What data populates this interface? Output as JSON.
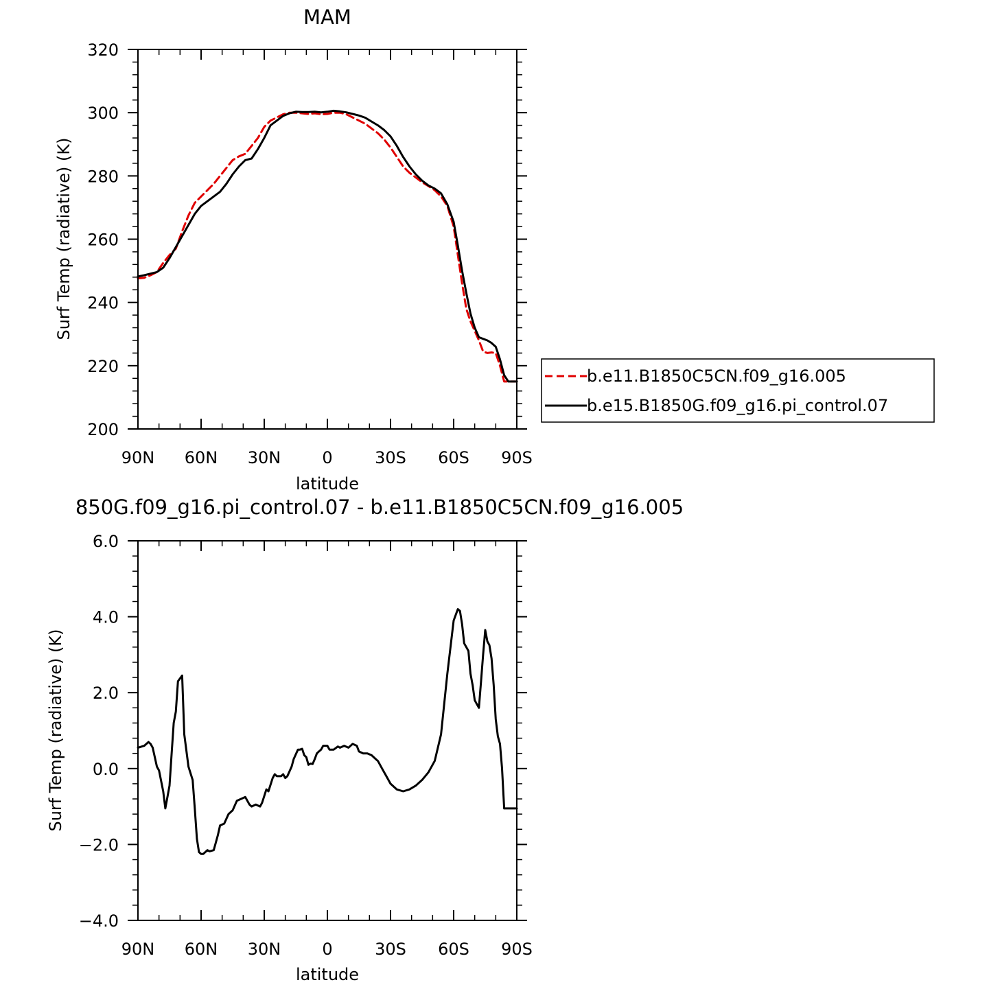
{
  "chart_data": [
    {
      "type": "line",
      "title": "MAM",
      "xlabel": "latitude",
      "ylabel": "Surf Temp (radiative) (K)",
      "xlim": [
        90,
        -90
      ],
      "ylim": [
        200,
        320
      ],
      "x_ticks": [
        90,
        60,
        30,
        0,
        -30,
        -60,
        -90
      ],
      "x_tick_labels": [
        "90N",
        "60N",
        "30N",
        "0",
        "30S",
        "60S",
        "90S"
      ],
      "y_ticks": [
        200,
        220,
        240,
        260,
        280,
        300,
        320
      ],
      "y_tick_labels": [
        "200",
        "220",
        "240",
        "260",
        "280",
        "300",
        "320"
      ],
      "legend_position": "right",
      "series": [
        {
          "name": "b.e11.B1850C5CN.f09_g16.005",
          "color": "#e00000",
          "dash": "dashed",
          "x": [
            90,
            87,
            84,
            81,
            78,
            75,
            72,
            69,
            66,
            63,
            60,
            57,
            54,
            51,
            48,
            45,
            42,
            39,
            36,
            33,
            30,
            27,
            24,
            21,
            18,
            15,
            12,
            9,
            6,
            3,
            0,
            -3,
            -6,
            -9,
            -12,
            -15,
            -18,
            -21,
            -24,
            -27,
            -30,
            -33,
            -36,
            -39,
            -42,
            -45,
            -48,
            -51,
            -54,
            -57,
            -60,
            -62,
            -64,
            -66,
            -68,
            -70,
            -72,
            -74,
            -76,
            -78,
            -80,
            -82,
            -84,
            -86,
            -88,
            -90
          ],
          "y": [
            247.6,
            247.8,
            248.6,
            249.6,
            252.5,
            255.0,
            257.0,
            262.5,
            267.5,
            271.5,
            273.5,
            275.5,
            277.5,
            280.0,
            282.5,
            285.0,
            286.2,
            287.0,
            289.5,
            292.0,
            295.5,
            297.5,
            298.5,
            299.5,
            300.0,
            300.0,
            299.8,
            299.6,
            299.8,
            299.5,
            299.6,
            300.0,
            300.0,
            299.5,
            298.5,
            297.5,
            296.5,
            295.0,
            293.5,
            291.5,
            289.0,
            286.0,
            283.0,
            281.0,
            279.5,
            278.0,
            276.8,
            275.5,
            273.5,
            270.5,
            264.0,
            255.0,
            246.0,
            238.0,
            234.0,
            231.0,
            228.0,
            224.5,
            224.0,
            224.2,
            224.0,
            220.0,
            215.0,
            215.0,
            215.0,
            215.0
          ]
        },
        {
          "name": "b.e15.B1850G.f09_g16.pi_control.07",
          "color": "#000000",
          "dash": "solid",
          "x": [
            90,
            87,
            84,
            81,
            78,
            75,
            72,
            69,
            66,
            63,
            60,
            57,
            54,
            51,
            48,
            45,
            42,
            39,
            36,
            33,
            30,
            27,
            24,
            21,
            18,
            15,
            12,
            9,
            6,
            3,
            0,
            -3,
            -6,
            -9,
            -12,
            -15,
            -18,
            -21,
            -24,
            -27,
            -30,
            -33,
            -36,
            -39,
            -42,
            -45,
            -48,
            -51,
            -54,
            -57,
            -60,
            -62,
            -64,
            -66,
            -68,
            -70,
            -72,
            -74,
            -76,
            -78,
            -80,
            -82,
            -84,
            -86,
            -88,
            -90
          ],
          "y": [
            248.2,
            248.6,
            249.1,
            249.6,
            251.0,
            254.0,
            257.5,
            261.0,
            264.5,
            268.0,
            270.5,
            272.0,
            273.5,
            275.0,
            277.5,
            280.5,
            283.0,
            285.0,
            285.5,
            288.5,
            292.0,
            296.0,
            297.5,
            299.0,
            299.8,
            300.3,
            300.2,
            300.2,
            300.3,
            300.1,
            300.3,
            300.6,
            300.4,
            300.1,
            299.6,
            299.1,
            298.4,
            297.2,
            296.0,
            294.5,
            292.5,
            289.5,
            286.0,
            283.0,
            280.5,
            278.5,
            277.0,
            276.0,
            274.5,
            271.0,
            265.5,
            258.0,
            250.0,
            243.0,
            236.5,
            232.0,
            229.0,
            228.5,
            228.0,
            227.2,
            226.0,
            222.0,
            217.0,
            215.0,
            215.0,
            215.0
          ]
        }
      ]
    },
    {
      "type": "line",
      "title": "850G.f09_g16.pi_control.07 - b.e11.B1850C5CN.f09_g16.005",
      "xlabel": "latitude",
      "ylabel": "Surf Temp (radiative) (K)",
      "xlim": [
        90,
        -90
      ],
      "ylim": [
        -4.0,
        6.0
      ],
      "x_ticks": [
        90,
        60,
        30,
        0,
        -30,
        -60,
        -90
      ],
      "x_tick_labels": [
        "90N",
        "60N",
        "30N",
        "0",
        "30S",
        "60S",
        "90S"
      ],
      "y_ticks": [
        -4.0,
        -2.0,
        0.0,
        2.0,
        4.0,
        6.0
      ],
      "y_tick_labels": [
        "−4.0",
        "−2.0",
        "0.0",
        "2.0",
        "4.0",
        "6.0"
      ],
      "series": [
        {
          "color": "#000000",
          "dash": "solid",
          "x": [
            90,
            87,
            85,
            84,
            83,
            81,
            80,
            78,
            77,
            75,
            74,
            73,
            72,
            71,
            69,
            68,
            66,
            64,
            63,
            62,
            61,
            60,
            59,
            57,
            56,
            54,
            52,
            51,
            49,
            47,
            45,
            43,
            41,
            39,
            37,
            36,
            34,
            32,
            31,
            29,
            28,
            26,
            25,
            24,
            22,
            21,
            20,
            19,
            17,
            16,
            14,
            13,
            12,
            11,
            10,
            9,
            8,
            7,
            6,
            5,
            4,
            3,
            2,
            0,
            -1,
            -3,
            -5,
            -6,
            -8,
            -10,
            -12,
            -14,
            -15,
            -17,
            -19,
            -21,
            -22,
            -23,
            -24,
            -26,
            -28,
            -30,
            -33,
            -36,
            -39,
            -42,
            -45,
            -48,
            -51,
            -54,
            -57,
            -60,
            -62,
            -63,
            -64,
            -65,
            -67,
            -68,
            -69,
            -70,
            -71,
            -72,
            -73,
            -74,
            -75,
            -76,
            -77,
            -78,
            -79,
            -80,
            -81,
            -82,
            -83,
            -84,
            -85,
            -86,
            -87,
            -88,
            -89,
            -90
          ],
          "y": [
            0.55,
            0.6,
            0.7,
            0.65,
            0.55,
            0.05,
            -0.05,
            -0.6,
            -1.05,
            -0.45,
            0.4,
            1.2,
            1.5,
            2.3,
            2.45,
            0.9,
            0.05,
            -0.3,
            -1.05,
            -1.85,
            -2.2,
            -2.25,
            -2.25,
            -2.15,
            -2.18,
            -2.15,
            -1.75,
            -1.5,
            -1.45,
            -1.2,
            -1.1,
            -0.85,
            -0.8,
            -0.75,
            -0.95,
            -1.0,
            -0.95,
            -1.0,
            -0.9,
            -0.55,
            -0.6,
            -0.25,
            -0.15,
            -0.2,
            -0.2,
            -0.15,
            -0.25,
            -0.2,
            0.05,
            0.25,
            0.5,
            0.5,
            0.52,
            0.35,
            0.3,
            0.1,
            0.13,
            0.12,
            0.25,
            0.4,
            0.45,
            0.5,
            0.6,
            0.6,
            0.5,
            0.5,
            0.58,
            0.55,
            0.6,
            0.55,
            0.65,
            0.6,
            0.45,
            0.4,
            0.4,
            0.35,
            0.3,
            0.25,
            0.2,
            0.0,
            -0.2,
            -0.4,
            -0.55,
            -0.6,
            -0.55,
            -0.45,
            -0.3,
            -0.1,
            0.2,
            0.9,
            2.5,
            3.9,
            4.2,
            4.15,
            3.8,
            3.3,
            3.1,
            2.5,
            2.2,
            1.8,
            1.7,
            1.6,
            2.3,
            3.0,
            3.65,
            3.35,
            3.25,
            2.9,
            2.2,
            1.3,
            0.85,
            0.65,
            0.0,
            -1.05,
            -1.05,
            -1.05,
            -1.05,
            -1.05,
            -1.05,
            -1.05
          ]
        }
      ]
    }
  ]
}
